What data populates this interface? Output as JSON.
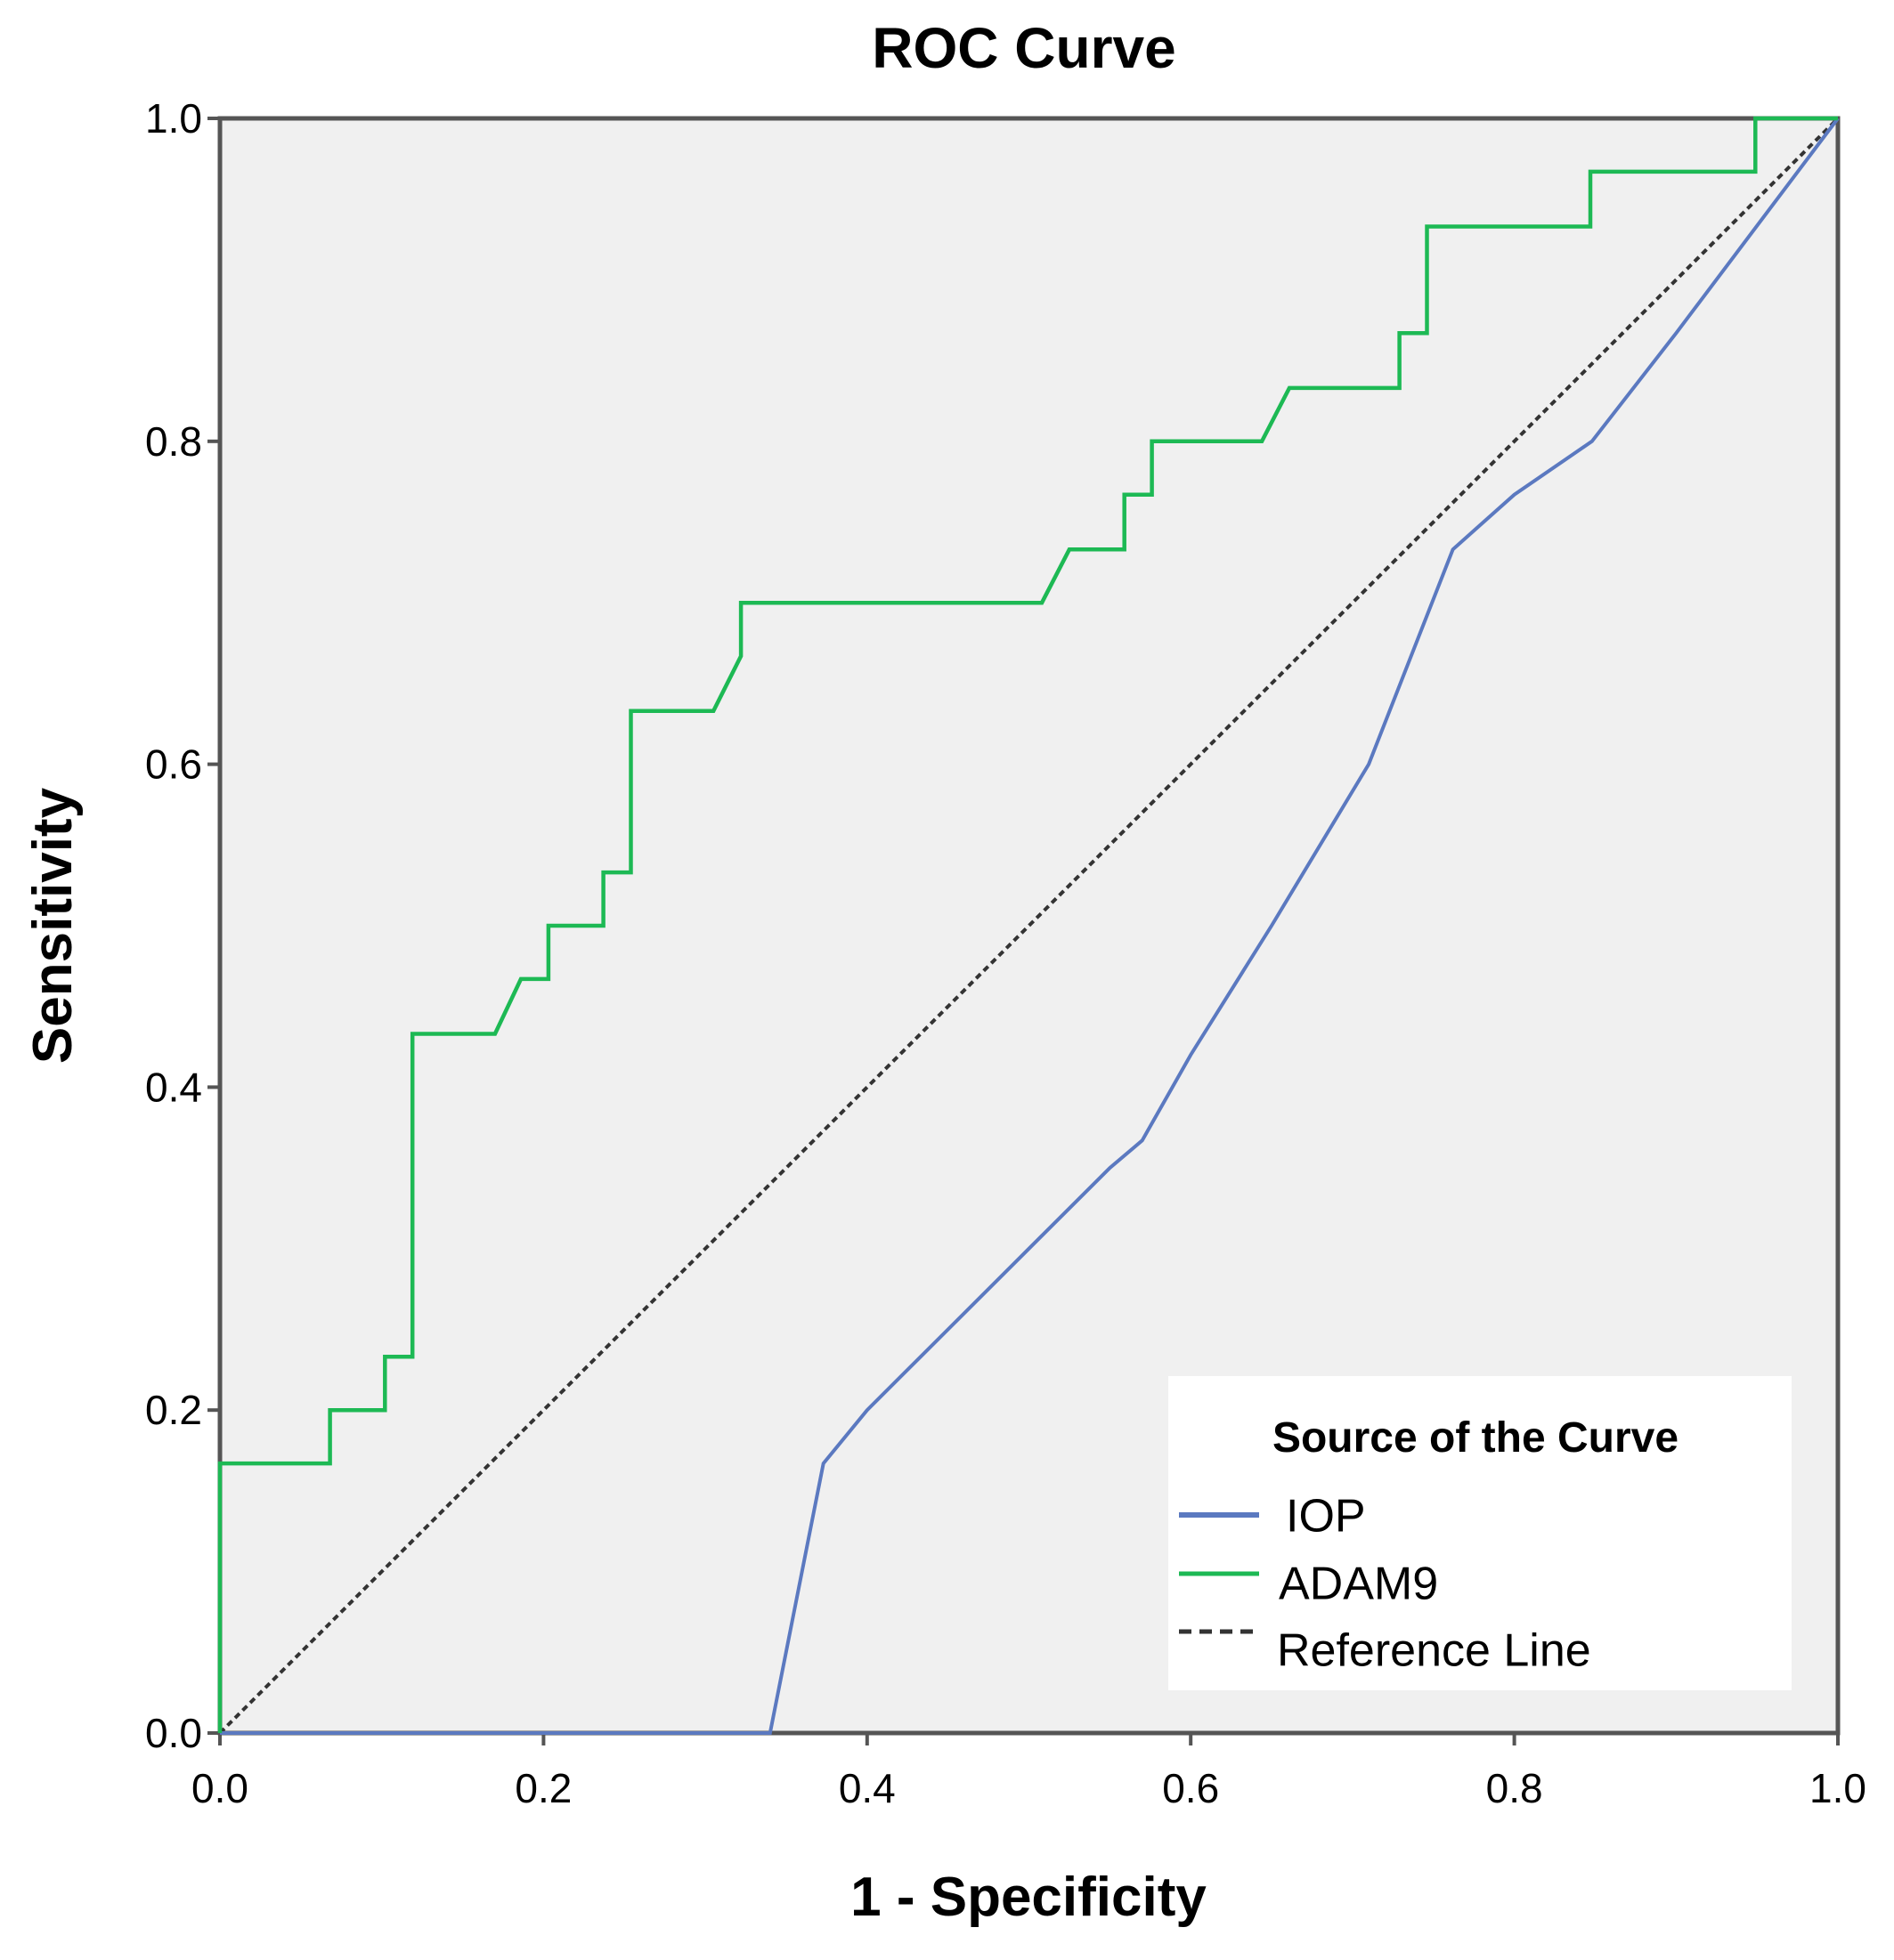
{
  "chart_data": {
    "type": "line",
    "title": "ROC Curve",
    "xlabel": "1 - Specificity",
    "ylabel": "Sensitivity",
    "xlim": [
      0.0,
      1.0
    ],
    "ylim": [
      0.0,
      1.0
    ],
    "xticks": [
      "0.0",
      "0.2",
      "0.4",
      "0.6",
      "0.8",
      "1.0"
    ],
    "yticks": [
      "0.0",
      "0.2",
      "0.4",
      "0.6",
      "0.8",
      "1.0"
    ],
    "grid": false,
    "background_color": "#f0f0f0",
    "legend": {
      "title": "Source of the Curve",
      "position": "bottom-right"
    },
    "series": [
      {
        "name": "IOP",
        "color": "#5b79c0",
        "style": "solid",
        "x": [
          0.0,
          0.34,
          0.373,
          0.4,
          0.45,
          0.5,
          0.55,
          0.57,
          0.6,
          0.65,
          0.71,
          0.762,
          0.8,
          0.848,
          0.9,
          1.0
        ],
        "y": [
          0.0,
          0.0,
          0.167,
          0.2,
          0.25,
          0.3,
          0.35,
          0.367,
          0.42,
          0.5,
          0.6,
          0.733,
          0.767,
          0.8,
          0.867,
          1.0
        ]
      },
      {
        "name": "ADAM9",
        "color": "#1db954",
        "style": "step",
        "x": [
          0.0,
          0.0,
          0.068,
          0.068,
          0.102,
          0.102,
          0.119,
          0.119,
          0.17,
          0.186,
          0.203,
          0.203,
          0.237,
          0.237,
          0.254,
          0.254,
          0.305,
          0.322,
          0.322,
          0.508,
          0.525,
          0.559,
          0.559,
          0.576,
          0.576,
          0.644,
          0.661,
          0.729,
          0.729,
          0.746,
          0.746,
          0.847,
          0.847,
          0.949,
          0.949,
          1.0
        ],
        "y": [
          0.0,
          0.167,
          0.167,
          0.2,
          0.2,
          0.233,
          0.233,
          0.433,
          0.433,
          0.467,
          0.467,
          0.5,
          0.5,
          0.533,
          0.533,
          0.633,
          0.633,
          0.667,
          0.7,
          0.7,
          0.733,
          0.733,
          0.767,
          0.767,
          0.8,
          0.8,
          0.833,
          0.833,
          0.867,
          0.867,
          0.933,
          0.933,
          0.967,
          0.967,
          1.0,
          1.0
        ]
      },
      {
        "name": "Reference Line",
        "color": "#333333",
        "style": "dashed",
        "x": [
          0.0,
          1.0
        ],
        "y": [
          0.0,
          1.0
        ]
      }
    ]
  }
}
